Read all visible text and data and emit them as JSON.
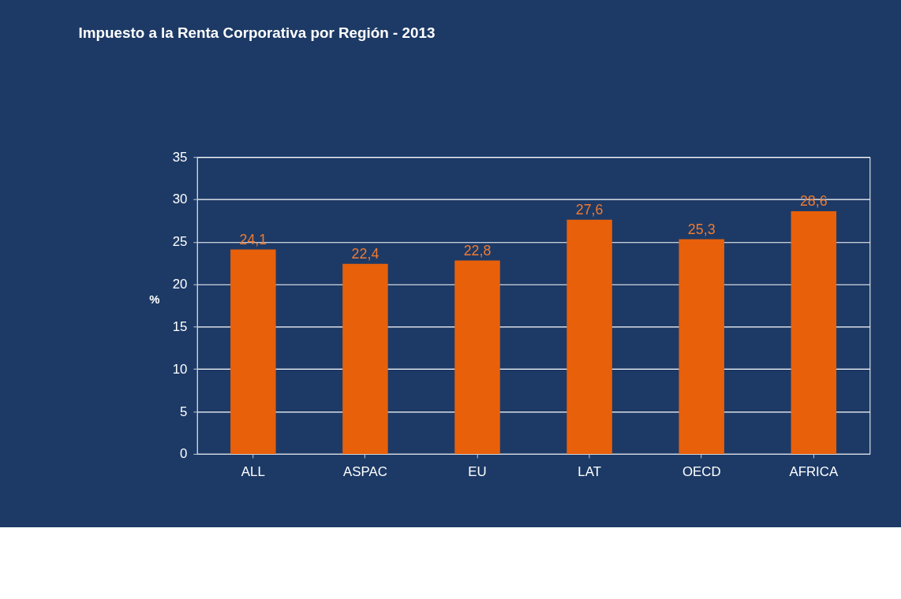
{
  "chart_data": {
    "type": "bar",
    "title": "Impuesto a la Renta Corporativa por Región - 2013",
    "ylabel": "%",
    "categories": [
      "ALL",
      "ASPAC",
      "EU",
      "LAT",
      "OECD",
      "AFRICA"
    ],
    "values": [
      24.1,
      22.4,
      22.8,
      27.6,
      25.3,
      28.6
    ],
    "value_labels": [
      "24,1",
      "22,4",
      "22,8",
      "27,6",
      "25,3",
      "28,6"
    ],
    "color": "#e8600a",
    "ylim": [
      0,
      35
    ],
    "yticks": [
      0,
      5,
      10,
      15,
      20,
      25,
      30,
      35
    ],
    "grid": "y"
  }
}
